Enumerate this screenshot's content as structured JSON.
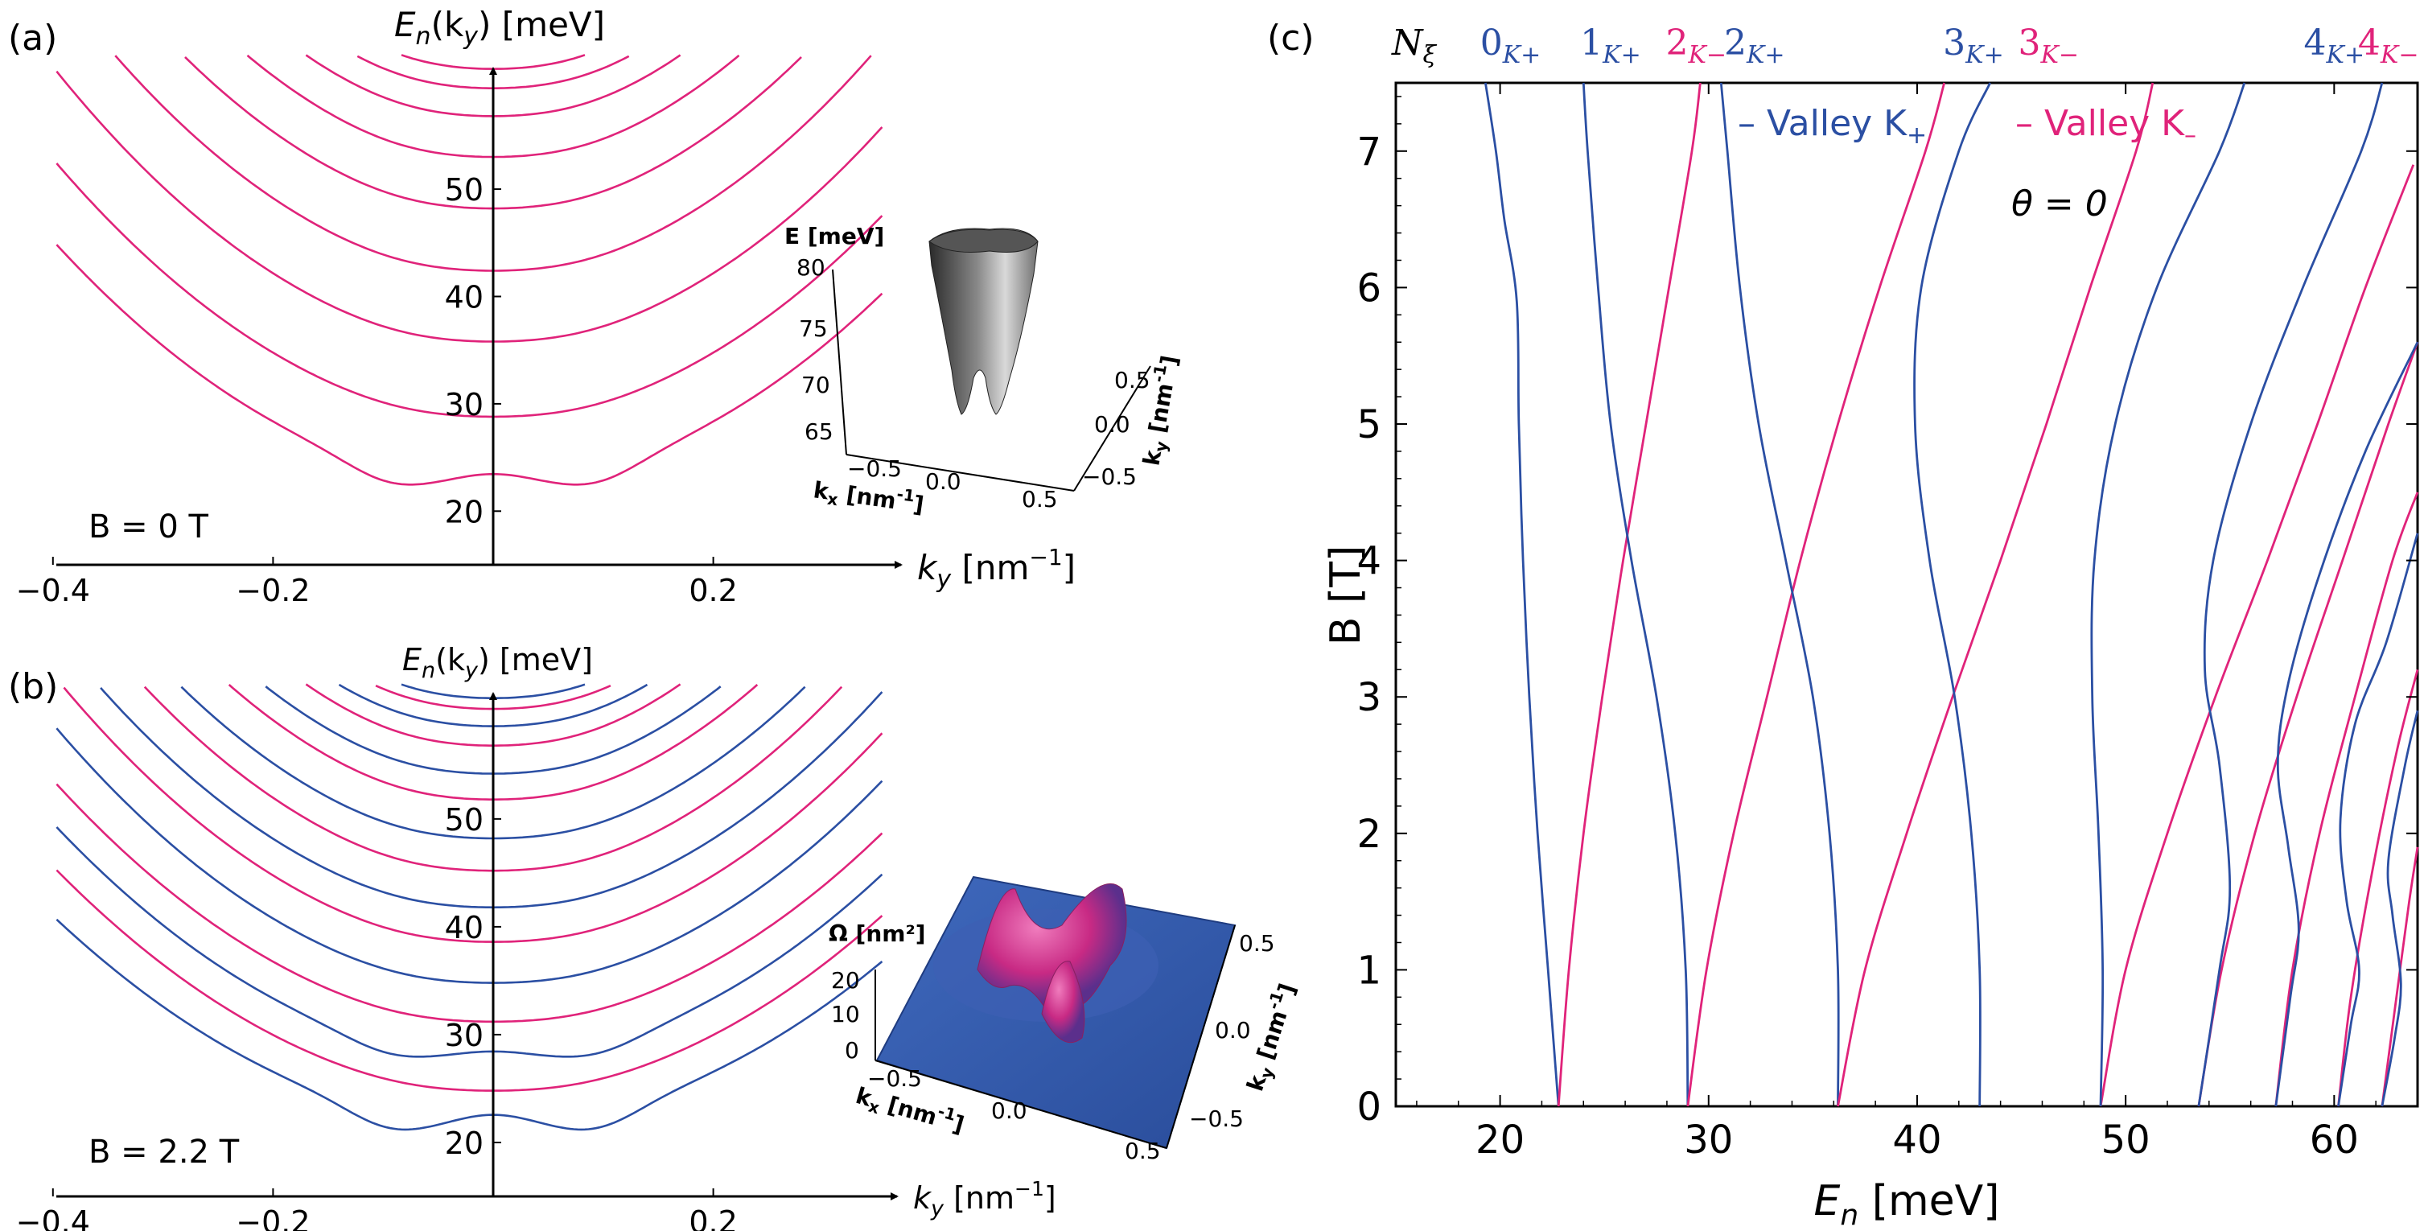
{
  "colors": {
    "blue": "#2b4fa3",
    "pink": "#e0237a",
    "axis": "#000000",
    "surface_dark": "#3a3a3a",
    "surface_blue": "#2c55a8",
    "surface_pink": "#d42c86"
  },
  "panels": {
    "a": {
      "panel_label": "(a)",
      "yaxis_label_main": "E",
      "yaxis_label_sub": "n",
      "yaxis_label_rest": "(k",
      "yaxis_label_sub2": "y",
      "yaxis_label_unit": ") [meV]",
      "xaxis_label_main": "k",
      "xaxis_label_sub": "y",
      "xaxis_label_unit": " [nm",
      "xaxis_label_sup": "−1",
      "xaxis_label_close": "]",
      "field_label": "B = 0 T",
      "inset": {
        "z_label": "E [meV]",
        "z_ticks": [
          "80",
          "75",
          "70",
          "65"
        ],
        "kx_label": "k",
        "kx_sub": "x",
        "kx_unit": " [nm",
        "kx_sup": "-1",
        "kx_close": "]",
        "kx_ticks": [
          "−0.5",
          "0.0",
          "0.5"
        ],
        "ky_label": "k",
        "ky_sub": "y",
        "ky_unit": " [nm",
        "ky_sup": "-1",
        "ky_close": "]",
        "ky_ticks": [
          "0.5",
          "0.0",
          "−0.5"
        ]
      }
    },
    "b": {
      "panel_label": "(b)",
      "yaxis_label_main": "E",
      "yaxis_label_sub": "n",
      "yaxis_label_rest": "(k",
      "yaxis_label_sub2": "y",
      "yaxis_label_unit": ") [meV]",
      "xaxis_label_main": "k",
      "xaxis_label_sub": "y",
      "xaxis_label_unit": " [nm",
      "xaxis_label_sup": "−1",
      "xaxis_label_close": "]",
      "field_label": "B = 2.2 T",
      "inset": {
        "z_label": "Ω [nm²]",
        "z_ticks": [
          "20",
          "10",
          "0"
        ],
        "kx_label": "k",
        "kx_sub": "x",
        "kx_unit": " [nm",
        "kx_sup": "-1",
        "kx_close": "]",
        "kx_ticks": [
          "−0.5",
          "0.0",
          "0.5"
        ],
        "ky_label": "k",
        "ky_sub": "y",
        "ky_unit": " [nm",
        "ky_sup": "-1",
        "ky_close": "]",
        "ky_ticks": [
          "0.5",
          "0.0",
          "−0.5"
        ]
      }
    },
    "c": {
      "panel_label": "(c)",
      "top_symbol": "N",
      "top_symbol_sub": "ξ",
      "top_labels": [
        {
          "n": "0",
          "v": "K+",
          "color": "blue",
          "e": 20.5
        },
        {
          "n": "1",
          "v": "K+",
          "color": "blue",
          "e": 25.3
        },
        {
          "n": "2",
          "v": "K−",
          "color": "pink",
          "e": 29.4
        },
        {
          "n": "2",
          "v": "K+",
          "color": "blue",
          "e": 32.2
        },
        {
          "n": "3",
          "v": "K+",
          "color": "blue",
          "e": 42.7
        },
        {
          "n": "3",
          "v": "K−",
          "color": "pink",
          "e": 46.3
        },
        {
          "n": "4",
          "v": "K+",
          "color": "blue",
          "e": 60.0
        },
        {
          "n": "4",
          "v": "K−",
          "color": "pink",
          "e": 62.6
        }
      ],
      "legend": [
        {
          "text": "– Valley K",
          "sub": "+",
          "color": "blue"
        },
        {
          "text": "– Valley K",
          "sub": "–",
          "color": "pink"
        }
      ],
      "theta_label": "θ = 0",
      "ylabel": "B [T]",
      "xlabel_main": "E",
      "xlabel_sub": "n",
      "xlabel_unit": " [meV]"
    }
  },
  "chart_data": [
    {
      "type": "line",
      "panel": "a",
      "xlabel": "k_y [nm^-1]",
      "ylabel": "E_n(k_y) [meV]",
      "xlim": [
        -0.4,
        0.4
      ],
      "ylim": [
        15,
        62
      ],
      "x_ticks": [
        "−0.4",
        "−0.2",
        "0.2"
      ],
      "x_tick_values": [
        -0.4,
        -0.2,
        0.2
      ],
      "y_ticks": [
        "20",
        "30",
        "40",
        "50"
      ],
      "y_tick_values": [
        20,
        30,
        40,
        50
      ],
      "series_color": "pink",
      "bands": [
        {
          "e0": 22.8,
          "curv": 140,
          "dip": 1.2
        },
        {
          "e0": 28.8,
          "curv": 150,
          "dip": 0
        },
        {
          "e0": 35.8,
          "curv": 160,
          "dip": 0
        },
        {
          "e0": 42.4,
          "curv": 170,
          "dip": 0
        },
        {
          "e0": 48.2,
          "curv": 180,
          "dip": 0
        },
        {
          "e0": 53.0,
          "curv": 190,
          "dip": 0
        },
        {
          "e0": 56.8,
          "curv": 200,
          "dip": 0
        },
        {
          "e0": 59.4,
          "curv": 210,
          "dip": 0
        },
        {
          "e0": 61.2,
          "curv": 220,
          "dip": 0
        }
      ]
    },
    {
      "type": "line",
      "panel": "b",
      "xlabel": "k_y [nm^-1]",
      "ylabel": "E_n(k_y) [meV]",
      "xlim": [
        -0.4,
        0.4
      ],
      "ylim": [
        15,
        62
      ],
      "x_ticks": [
        "−0.4",
        "−0.2",
        "0.2"
      ],
      "x_tick_values": [
        -0.4,
        -0.2,
        0.2
      ],
      "y_ticks": [
        "20",
        "30",
        "40",
        "50"
      ],
      "y_tick_values": [
        20,
        30,
        40,
        50
      ],
      "bands": [
        {
          "e0": 21.8,
          "curv": 120,
          "dip": 1.4,
          "color": "blue"
        },
        {
          "e0": 24.8,
          "curv": 130,
          "dip": 0,
          "color": "pink"
        },
        {
          "e0": 28.0,
          "curv": 135,
          "dip": 0.8,
          "color": "blue"
        },
        {
          "e0": 31.2,
          "curv": 140,
          "dip": 0,
          "color": "pink"
        },
        {
          "e0": 34.8,
          "curv": 150,
          "dip": 0,
          "color": "blue"
        },
        {
          "e0": 38.6,
          "curv": 155,
          "dip": 0,
          "color": "pink"
        },
        {
          "e0": 41.8,
          "curv": 160,
          "dip": 0,
          "color": "blue"
        },
        {
          "e0": 45.2,
          "curv": 170,
          "dip": 0,
          "color": "pink"
        },
        {
          "e0": 48.2,
          "curv": 175,
          "dip": 0,
          "color": "blue"
        },
        {
          "e0": 51.8,
          "curv": 185,
          "dip": 0,
          "color": "pink"
        },
        {
          "e0": 54.2,
          "curv": 190,
          "dip": 0,
          "color": "blue"
        },
        {
          "e0": 56.8,
          "curv": 200,
          "dip": 0,
          "color": "pink"
        },
        {
          "e0": 58.6,
          "curv": 205,
          "dip": 0,
          "color": "blue"
        },
        {
          "e0": 60.2,
          "curv": 210,
          "dip": 0,
          "color": "pink"
        },
        {
          "e0": 61.2,
          "curv": 215,
          "dip": 0,
          "color": "blue"
        }
      ]
    },
    {
      "type": "line",
      "panel": "c",
      "xlabel": "E_n [meV]",
      "ylabel": "B [T]",
      "xlim": [
        15,
        64
      ],
      "ylim": [
        0,
        7.5
      ],
      "x_ticks": [
        "20",
        "30",
        "40",
        "50",
        "60"
      ],
      "x_tick_values": [
        20,
        30,
        40,
        50,
        60
      ],
      "y_ticks": [
        "0",
        "1",
        "2",
        "3",
        "4",
        "5",
        "6",
        "7"
      ],
      "y_tick_values": [
        0,
        1,
        2,
        3,
        4,
        5,
        6,
        7
      ],
      "series": [
        {
          "name": "0 K+",
          "color": "blue",
          "points": [
            [
              22.8,
              0
            ],
            [
              22.3,
              1
            ],
            [
              21.8,
              2
            ],
            [
              21.4,
              3
            ],
            [
              21.1,
              4
            ],
            [
              20.9,
              5
            ],
            [
              20.8,
              5.9
            ],
            [
              20.2,
              6.5
            ],
            [
              19.8,
              7
            ],
            [
              19.3,
              7.5
            ]
          ]
        },
        {
          "name": "1 K−",
          "color": "pink",
          "points": [
            [
              22.8,
              0
            ],
            [
              23.3,
              1
            ],
            [
              24.0,
              2
            ],
            [
              24.9,
              3
            ],
            [
              25.9,
              4
            ],
            [
              27.0,
              5
            ],
            [
              28.1,
              6
            ],
            [
              29.2,
              7
            ],
            [
              29.6,
              7.5
            ]
          ]
        },
        {
          "name": "1 K+",
          "color": "blue",
          "points": [
            [
              29.0,
              0
            ],
            [
              28.9,
              1
            ],
            [
              28.4,
              2
            ],
            [
              27.5,
              3
            ],
            [
              26.3,
              4
            ],
            [
              25.3,
              5
            ],
            [
              24.7,
              6
            ],
            [
              24.2,
              7
            ],
            [
              24.0,
              7.5
            ]
          ]
        },
        {
          "name": "2 K−",
          "color": "pink",
          "points": [
            [
              29.0,
              0
            ],
            [
              29.9,
              1
            ],
            [
              31.2,
              2
            ],
            [
              32.8,
              3
            ],
            [
              34.4,
              4
            ],
            [
              36.2,
              5
            ],
            [
              38.2,
              6
            ],
            [
              40.4,
              7
            ],
            [
              41.3,
              7.5
            ]
          ]
        },
        {
          "name": "2 K+",
          "color": "blue",
          "points": [
            [
              36.2,
              0
            ],
            [
              36.2,
              1
            ],
            [
              35.8,
              2
            ],
            [
              35.0,
              3
            ],
            [
              33.7,
              4
            ],
            [
              32.4,
              5
            ],
            [
              31.5,
              6
            ],
            [
              30.9,
              7
            ],
            [
              30.6,
              7.5
            ]
          ]
        },
        {
          "name": "3 K−",
          "color": "pink",
          "points": [
            [
              36.2,
              0
            ],
            [
              37.5,
              1
            ],
            [
              39.5,
              2
            ],
            [
              41.7,
              3
            ],
            [
              44.0,
              4
            ],
            [
              46.2,
              5
            ],
            [
              48.3,
              6
            ],
            [
              50.5,
              7
            ],
            [
              51.3,
              7.5
            ]
          ]
        },
        {
          "name": "3 K+",
          "color": "blue",
          "points": [
            [
              43.0,
              0
            ],
            [
              43.0,
              1
            ],
            [
              42.6,
              2
            ],
            [
              41.8,
              3
            ],
            [
              40.6,
              4
            ],
            [
              39.9,
              5
            ],
            [
              40.2,
              6
            ],
            [
              42.0,
              7
            ],
            [
              43.5,
              7.5
            ]
          ]
        },
        {
          "name": "4 K−",
          "color": "pink",
          "points": [
            [
              48.8,
              0
            ],
            [
              50.0,
              1
            ],
            [
              52.0,
              2
            ],
            [
              54.3,
              3
            ],
            [
              56.8,
              4
            ],
            [
              59.2,
              5
            ],
            [
              61.5,
              6
            ],
            [
              63.8,
              6.9
            ]
          ]
        },
        {
          "name": "4 K+",
          "color": "blue",
          "points": [
            [
              48.8,
              0
            ],
            [
              48.9,
              1
            ],
            [
              48.7,
              2
            ],
            [
              48.4,
              3
            ],
            [
              48.5,
              4
            ],
            [
              49.5,
              5
            ],
            [
              51.5,
              6
            ],
            [
              54.5,
              7
            ],
            [
              55.7,
              7.5
            ]
          ]
        },
        {
          "name": "5 K−",
          "color": "pink",
          "points": [
            [
              53.5,
              0
            ],
            [
              54.6,
              1
            ],
            [
              56.2,
              2
            ],
            [
              58.2,
              3
            ],
            [
              60.4,
              4
            ],
            [
              62.6,
              5
            ],
            [
              64.0,
              5.6
            ]
          ]
        },
        {
          "name": "5 K+",
          "color": "blue",
          "points": [
            [
              53.5,
              0
            ],
            [
              54.5,
              1
            ],
            [
              55.0,
              1.6
            ],
            [
              54.5,
              2.5
            ],
            [
              53.8,
              3.2
            ],
            [
              54.2,
              4.0
            ],
            [
              56.0,
              5.0
            ],
            [
              58.5,
              6.0
            ],
            [
              61.3,
              7.0
            ],
            [
              62.3,
              7.5
            ]
          ]
        },
        {
          "name": "6 K−",
          "color": "pink",
          "points": [
            [
              57.2,
              0
            ],
            [
              58.0,
              1
            ],
            [
              59.3,
              2
            ],
            [
              61.0,
              3
            ],
            [
              62.8,
              4
            ],
            [
              64.0,
              4.5
            ]
          ]
        },
        {
          "name": "6 K+",
          "color": "blue",
          "points": [
            [
              57.2,
              0
            ],
            [
              57.9,
              0.8
            ],
            [
              58.3,
              1.3
            ],
            [
              57.8,
              1.9
            ],
            [
              57.3,
              2.5
            ],
            [
              57.8,
              3.1
            ],
            [
              59.3,
              3.9
            ],
            [
              61.5,
              4.8
            ],
            [
              64.0,
              5.6
            ]
          ]
        },
        {
          "name": "7 K−",
          "color": "pink",
          "points": [
            [
              60.2,
              0
            ],
            [
              60.8,
              0.8
            ],
            [
              61.8,
              1.7
            ],
            [
              63.0,
              2.6
            ],
            [
              64.0,
              3.2
            ]
          ]
        },
        {
          "name": "7 K+",
          "color": "blue",
          "points": [
            [
              60.2,
              0
            ],
            [
              60.8,
              0.6
            ],
            [
              61.2,
              1.0
            ],
            [
              60.6,
              1.5
            ],
            [
              60.3,
              2.1
            ],
            [
              61.0,
              2.8
            ],
            [
              62.5,
              3.4
            ],
            [
              64.0,
              4.2
            ]
          ]
        },
        {
          "name": "8 K−",
          "color": "pink",
          "points": [
            [
              62.3,
              0
            ],
            [
              62.9,
              0.7
            ],
            [
              63.6,
              1.5
            ],
            [
              64.0,
              1.9
            ]
          ]
        },
        {
          "name": "8 K+",
          "color": "blue",
          "points": [
            [
              62.3,
              0
            ],
            [
              62.9,
              0.5
            ],
            [
              63.2,
              0.9
            ],
            [
              62.8,
              1.4
            ],
            [
              62.6,
              1.8
            ],
            [
              63.4,
              2.5
            ],
            [
              64.0,
              2.9
            ]
          ]
        }
      ]
    }
  ]
}
